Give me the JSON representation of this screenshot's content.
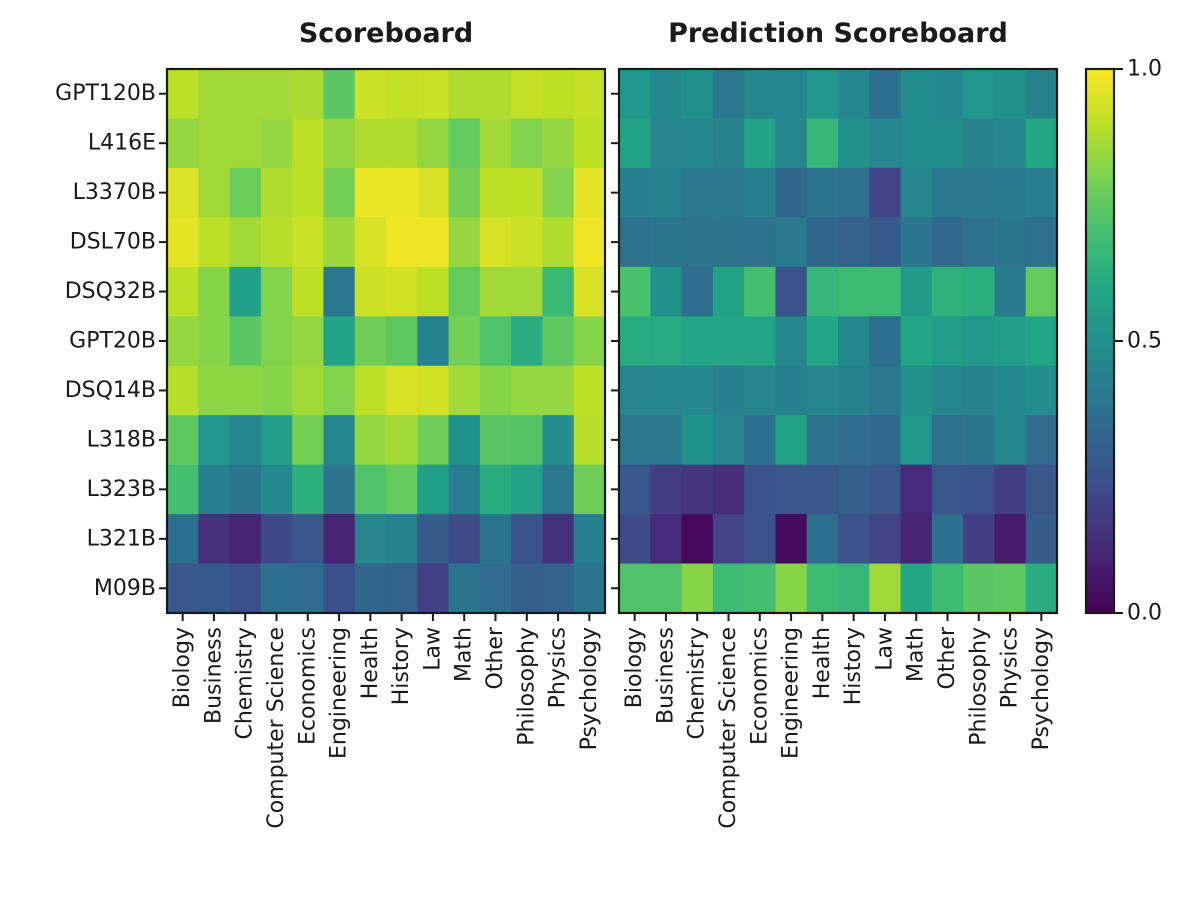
{
  "chart_data": {
    "type": "heatmap",
    "rows": [
      "GPT120B",
      "L416E",
      "L3370B",
      "DSL70B",
      "DSQ32B",
      "GPT20B",
      "DSQ14B",
      "L318B",
      "L323B",
      "L321B",
      "M09B"
    ],
    "columns": [
      "Biology",
      "Business",
      "Chemistry",
      "Computer Science",
      "Economics",
      "Engineering",
      "Health",
      "History",
      "Law",
      "Math",
      "Other",
      "Philosophy",
      "Physics",
      "Psychology"
    ],
    "value_range": [
      0.0,
      1.0
    ],
    "colormap": "viridis",
    "colorbar": {
      "ticks": [
        0.0,
        0.5,
        1.0
      ],
      "tick_labels": [
        "0.0",
        "0.5",
        "1.0"
      ]
    },
    "panels": [
      {
        "title": "Scoreboard",
        "values": [
          [
            0.9,
            0.86,
            0.86,
            0.86,
            0.87,
            0.74,
            0.92,
            0.91,
            0.92,
            0.88,
            0.88,
            0.91,
            0.9,
            0.91
          ],
          [
            0.84,
            0.86,
            0.86,
            0.84,
            0.9,
            0.84,
            0.88,
            0.88,
            0.84,
            0.76,
            0.86,
            0.81,
            0.84,
            0.9
          ],
          [
            0.95,
            0.86,
            0.77,
            0.88,
            0.9,
            0.79,
            0.97,
            0.97,
            0.94,
            0.79,
            0.9,
            0.9,
            0.81,
            0.96
          ],
          [
            0.96,
            0.9,
            0.86,
            0.89,
            0.92,
            0.85,
            0.94,
            0.98,
            0.98,
            0.84,
            0.94,
            0.92,
            0.88,
            0.98
          ],
          [
            0.9,
            0.82,
            0.56,
            0.81,
            0.9,
            0.4,
            0.92,
            0.93,
            0.9,
            0.76,
            0.86,
            0.86,
            0.67,
            0.94
          ],
          [
            0.84,
            0.82,
            0.74,
            0.81,
            0.84,
            0.58,
            0.78,
            0.75,
            0.44,
            0.79,
            0.72,
            0.62,
            0.75,
            0.82
          ],
          [
            0.89,
            0.83,
            0.83,
            0.82,
            0.86,
            0.81,
            0.9,
            0.94,
            0.93,
            0.86,
            0.82,
            0.84,
            0.84,
            0.9
          ],
          [
            0.75,
            0.52,
            0.45,
            0.55,
            0.79,
            0.46,
            0.84,
            0.86,
            0.78,
            0.5,
            0.74,
            0.73,
            0.49,
            0.89
          ],
          [
            0.7,
            0.43,
            0.39,
            0.47,
            0.63,
            0.38,
            0.72,
            0.76,
            0.56,
            0.42,
            0.62,
            0.57,
            0.4,
            0.78
          ],
          [
            0.36,
            0.14,
            0.1,
            0.22,
            0.27,
            0.1,
            0.45,
            0.44,
            0.29,
            0.23,
            0.39,
            0.26,
            0.14,
            0.43
          ],
          [
            0.27,
            0.28,
            0.24,
            0.36,
            0.35,
            0.24,
            0.33,
            0.31,
            0.19,
            0.39,
            0.35,
            0.3,
            0.31,
            0.38
          ]
        ]
      },
      {
        "title": "Prediction Scoreboard",
        "values": [
          [
            0.52,
            0.47,
            0.5,
            0.4,
            0.45,
            0.46,
            0.52,
            0.46,
            0.36,
            0.48,
            0.47,
            0.52,
            0.5,
            0.44
          ],
          [
            0.58,
            0.45,
            0.47,
            0.44,
            0.58,
            0.45,
            0.66,
            0.5,
            0.45,
            0.48,
            0.48,
            0.44,
            0.46,
            0.6
          ],
          [
            0.43,
            0.44,
            0.4,
            0.4,
            0.43,
            0.33,
            0.39,
            0.37,
            0.2,
            0.46,
            0.4,
            0.4,
            0.41,
            0.42
          ],
          [
            0.37,
            0.39,
            0.38,
            0.38,
            0.37,
            0.4,
            0.33,
            0.31,
            0.28,
            0.39,
            0.34,
            0.37,
            0.39,
            0.37
          ],
          [
            0.71,
            0.5,
            0.36,
            0.58,
            0.7,
            0.26,
            0.66,
            0.68,
            0.68,
            0.54,
            0.64,
            0.63,
            0.41,
            0.76
          ],
          [
            0.62,
            0.61,
            0.59,
            0.59,
            0.59,
            0.45,
            0.59,
            0.47,
            0.36,
            0.59,
            0.55,
            0.53,
            0.55,
            0.59
          ],
          [
            0.45,
            0.45,
            0.47,
            0.43,
            0.45,
            0.43,
            0.45,
            0.44,
            0.4,
            0.5,
            0.45,
            0.44,
            0.47,
            0.48
          ],
          [
            0.4,
            0.4,
            0.51,
            0.45,
            0.36,
            0.58,
            0.38,
            0.35,
            0.34,
            0.53,
            0.37,
            0.39,
            0.46,
            0.35
          ],
          [
            0.27,
            0.18,
            0.16,
            0.13,
            0.25,
            0.27,
            0.27,
            0.3,
            0.27,
            0.12,
            0.27,
            0.26,
            0.18,
            0.27
          ],
          [
            0.23,
            0.12,
            0.02,
            0.2,
            0.25,
            0.03,
            0.36,
            0.26,
            0.2,
            0.1,
            0.36,
            0.18,
            0.07,
            0.29
          ],
          [
            0.72,
            0.72,
            0.82,
            0.68,
            0.7,
            0.82,
            0.68,
            0.66,
            0.86,
            0.6,
            0.68,
            0.74,
            0.75,
            0.62
          ]
        ]
      }
    ]
  }
}
